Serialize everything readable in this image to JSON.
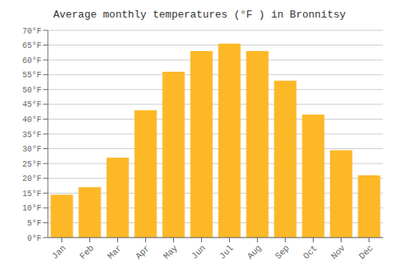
{
  "chart_data": {
    "type": "bar",
    "title": "Average monthly temperatures (°F ) in Bronnitsy",
    "categories": [
      "Jan",
      "Feb",
      "Mar",
      "Apr",
      "May",
      "Jun",
      "Jul",
      "Aug",
      "Sep",
      "Oct",
      "Nov",
      "Dec"
    ],
    "values": [
      14.5,
      17.0,
      27.0,
      43.0,
      56.0,
      63.0,
      65.5,
      63.0,
      53.0,
      41.5,
      29.5,
      21.0
    ],
    "color": "#FDB827",
    "ylim": [
      0,
      70
    ],
    "yticks": [
      {
        "value": 0,
        "label": "0°F"
      },
      {
        "value": 5,
        "label": "5°F"
      },
      {
        "value": 10,
        "label": "10°F"
      },
      {
        "value": 15,
        "label": "15°F"
      },
      {
        "value": 20,
        "label": "20°F"
      },
      {
        "value": 25,
        "label": "25°F"
      },
      {
        "value": 30,
        "label": "30°F"
      },
      {
        "value": 35,
        "label": "35°F"
      },
      {
        "value": 40,
        "label": "40°F"
      },
      {
        "value": 45,
        "label": "45°F"
      },
      {
        "value": 50,
        "label": "50°F"
      },
      {
        "value": 55,
        "label": "55°F"
      },
      {
        "value": 60,
        "label": "60°F"
      },
      {
        "value": 65,
        "label": "65°F"
      },
      {
        "value": 70,
        "label": "70°F"
      }
    ],
    "grid": true
  }
}
